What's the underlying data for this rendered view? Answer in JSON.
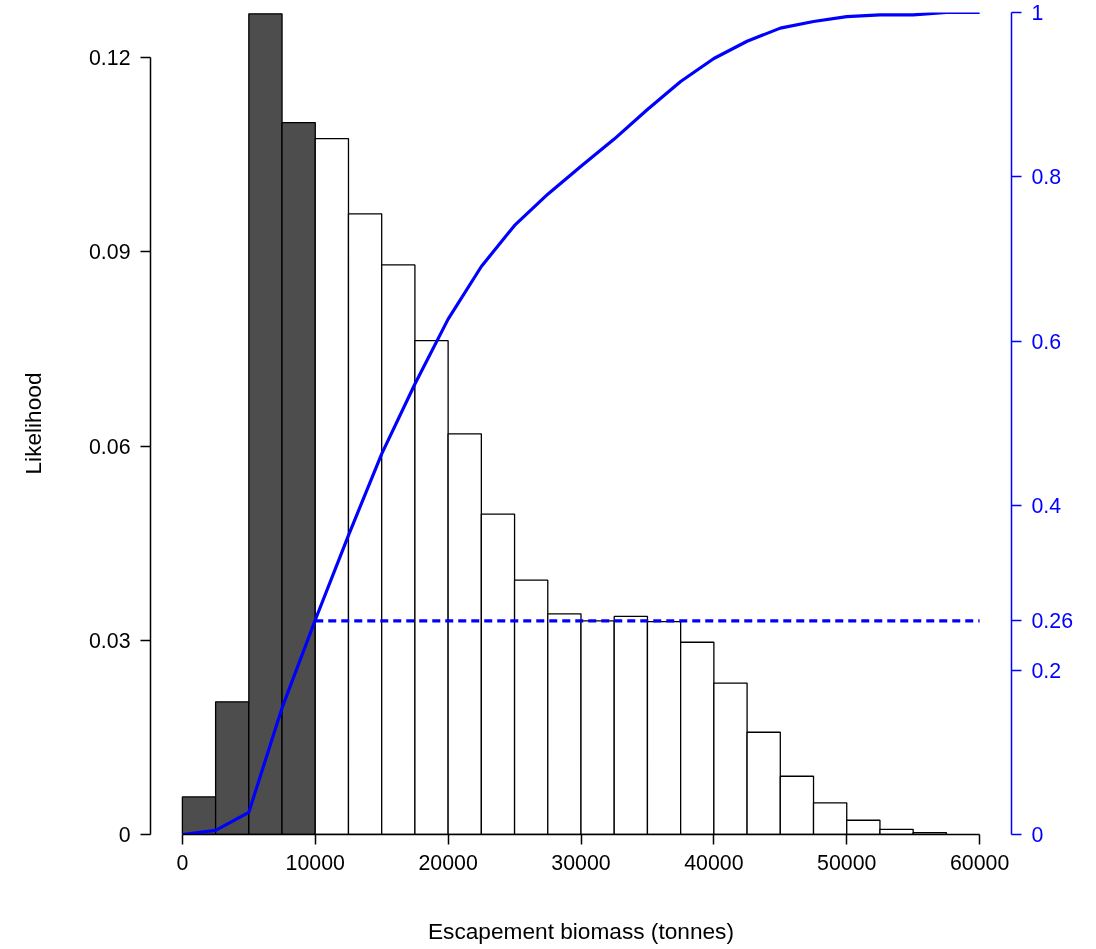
{
  "chart_data": {
    "type": "histogram",
    "xlabel": "Escapement biomass (tonnes)",
    "ylabel": "Likelihood",
    "bins": [
      0,
      2500,
      5000,
      7500,
      10000,
      12500,
      15000,
      17500,
      20000,
      22500,
      25000,
      27500,
      30000,
      32500,
      35000,
      37500,
      40000,
      42500,
      45000,
      47500,
      50000,
      52500,
      55000,
      57500,
      60000
    ],
    "values": [
      0.0058,
      0.0205,
      0.1268,
      0.11,
      0.1075,
      0.0959,
      0.088,
      0.0763,
      0.0619,
      0.0495,
      0.0393,
      0.0341,
      0.033,
      0.0337,
      0.0329,
      0.0297,
      0.0234,
      0.0158,
      0.009,
      0.0049,
      0.0022,
      0.0008,
      0.0003,
      null
    ],
    "colors": [
      "#4d4d4d",
      "#4d4d4d",
      "#4d4d4d",
      "#4d4d4d",
      "#ffffff",
      "#ffffff",
      "#ffffff",
      "#ffffff",
      "#ffffff",
      "#ffffff",
      "#ffffff",
      "#ffffff",
      "#ffffff",
      "#ffffff",
      "#ffffff",
      "#ffffff",
      "#ffffff",
      "#ffffff",
      "#ffffff",
      "#ffffff",
      "#ffffff",
      "#ffffff",
      "#ffffff",
      "#ffffff"
    ],
    "xlim": [
      -2400,
      62400
    ],
    "xticks": [
      0,
      10000,
      20000,
      30000,
      40000,
      50000,
      60000
    ],
    "ylim": [
      0,
      0.127
    ],
    "yticks": [
      0,
      0.03,
      0.06,
      0.09,
      0.12
    ],
    "y2lim": [
      0,
      1
    ],
    "y2ticks": [
      0,
      0.2,
      0.26,
      0.4,
      0.6,
      0.8,
      1
    ],
    "series": [
      {
        "type": "line",
        "axis": "y2",
        "color": "#0000ff",
        "line_style": "solid",
        "x": [
          0,
          2500,
          5000,
          7500,
          10000,
          12500,
          15000,
          17500,
          20000,
          22500,
          25000,
          27500,
          30000,
          32500,
          35000,
          37500,
          40000,
          42500,
          45000,
          47500,
          50000,
          52500,
          55000,
          57500,
          60000
        ],
        "values": [
          0,
          0.005,
          0.027,
          0.154,
          0.261,
          0.364,
          0.463,
          0.548,
          0.627,
          0.691,
          0.741,
          0.779,
          0.813,
          0.846,
          0.882,
          0.916,
          0.944,
          0.965,
          0.981,
          0.989,
          0.995,
          0.997,
          0.997,
          1.0,
          1.0
        ]
      },
      {
        "type": "line",
        "axis": "y2",
        "color": "#0000ff",
        "line_style": "dashed",
        "x": [
          10000,
          60000
        ],
        "values": [
          0.26,
          0.26
        ]
      }
    ],
    "grid": false
  }
}
